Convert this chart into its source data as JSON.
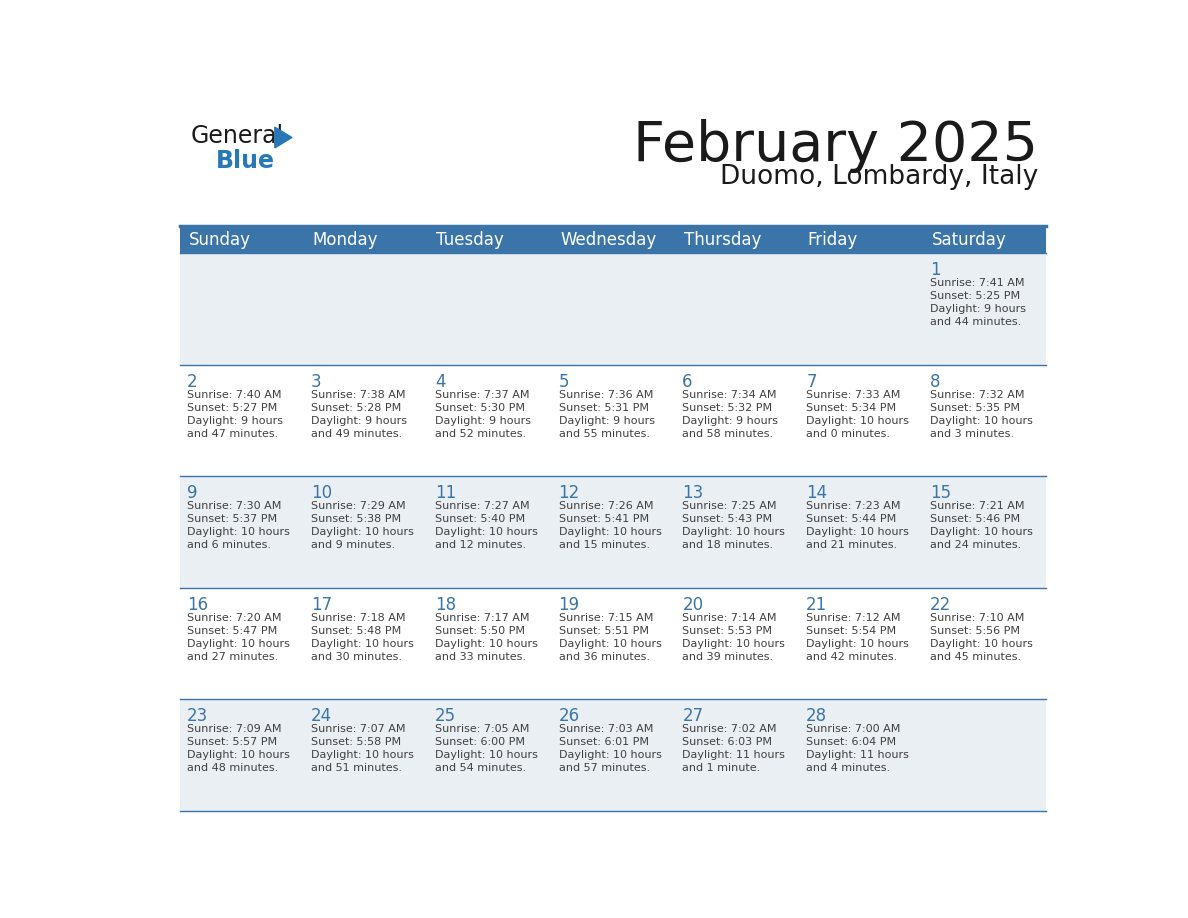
{
  "title": "February 2025",
  "subtitle": "Duomo, Lombardy, Italy",
  "days_of_week": [
    "Sunday",
    "Monday",
    "Tuesday",
    "Wednesday",
    "Thursday",
    "Friday",
    "Saturday"
  ],
  "header_color": "#3A74A8",
  "header_text_color": "#FFFFFF",
  "cell_bg_even": "#EAEFF4",
  "cell_bg_white": "#FFFFFF",
  "day_number_color": "#3A74A8",
  "text_color": "#404040",
  "line_color": "#3A74A8",
  "weeks": [
    [
      {
        "day": null,
        "sunrise": null,
        "sunset": null,
        "daylight": null
      },
      {
        "day": null,
        "sunrise": null,
        "sunset": null,
        "daylight": null
      },
      {
        "day": null,
        "sunrise": null,
        "sunset": null,
        "daylight": null
      },
      {
        "day": null,
        "sunrise": null,
        "sunset": null,
        "daylight": null
      },
      {
        "day": null,
        "sunrise": null,
        "sunset": null,
        "daylight": null
      },
      {
        "day": null,
        "sunrise": null,
        "sunset": null,
        "daylight": null
      },
      {
        "day": 1,
        "sunrise": "7:41 AM",
        "sunset": "5:25 PM",
        "daylight": "9 hours\nand 44 minutes."
      }
    ],
    [
      {
        "day": 2,
        "sunrise": "7:40 AM",
        "sunset": "5:27 PM",
        "daylight": "9 hours\nand 47 minutes."
      },
      {
        "day": 3,
        "sunrise": "7:38 AM",
        "sunset": "5:28 PM",
        "daylight": "9 hours\nand 49 minutes."
      },
      {
        "day": 4,
        "sunrise": "7:37 AM",
        "sunset": "5:30 PM",
        "daylight": "9 hours\nand 52 minutes."
      },
      {
        "day": 5,
        "sunrise": "7:36 AM",
        "sunset": "5:31 PM",
        "daylight": "9 hours\nand 55 minutes."
      },
      {
        "day": 6,
        "sunrise": "7:34 AM",
        "sunset": "5:32 PM",
        "daylight": "9 hours\nand 58 minutes."
      },
      {
        "day": 7,
        "sunrise": "7:33 AM",
        "sunset": "5:34 PM",
        "daylight": "10 hours\nand 0 minutes."
      },
      {
        "day": 8,
        "sunrise": "7:32 AM",
        "sunset": "5:35 PM",
        "daylight": "10 hours\nand 3 minutes."
      }
    ],
    [
      {
        "day": 9,
        "sunrise": "7:30 AM",
        "sunset": "5:37 PM",
        "daylight": "10 hours\nand 6 minutes."
      },
      {
        "day": 10,
        "sunrise": "7:29 AM",
        "sunset": "5:38 PM",
        "daylight": "10 hours\nand 9 minutes."
      },
      {
        "day": 11,
        "sunrise": "7:27 AM",
        "sunset": "5:40 PM",
        "daylight": "10 hours\nand 12 minutes."
      },
      {
        "day": 12,
        "sunrise": "7:26 AM",
        "sunset": "5:41 PM",
        "daylight": "10 hours\nand 15 minutes."
      },
      {
        "day": 13,
        "sunrise": "7:25 AM",
        "sunset": "5:43 PM",
        "daylight": "10 hours\nand 18 minutes."
      },
      {
        "day": 14,
        "sunrise": "7:23 AM",
        "sunset": "5:44 PM",
        "daylight": "10 hours\nand 21 minutes."
      },
      {
        "day": 15,
        "sunrise": "7:21 AM",
        "sunset": "5:46 PM",
        "daylight": "10 hours\nand 24 minutes."
      }
    ],
    [
      {
        "day": 16,
        "sunrise": "7:20 AM",
        "sunset": "5:47 PM",
        "daylight": "10 hours\nand 27 minutes."
      },
      {
        "day": 17,
        "sunrise": "7:18 AM",
        "sunset": "5:48 PM",
        "daylight": "10 hours\nand 30 minutes."
      },
      {
        "day": 18,
        "sunrise": "7:17 AM",
        "sunset": "5:50 PM",
        "daylight": "10 hours\nand 33 minutes."
      },
      {
        "day": 19,
        "sunrise": "7:15 AM",
        "sunset": "5:51 PM",
        "daylight": "10 hours\nand 36 minutes."
      },
      {
        "day": 20,
        "sunrise": "7:14 AM",
        "sunset": "5:53 PM",
        "daylight": "10 hours\nand 39 minutes."
      },
      {
        "day": 21,
        "sunrise": "7:12 AM",
        "sunset": "5:54 PM",
        "daylight": "10 hours\nand 42 minutes."
      },
      {
        "day": 22,
        "sunrise": "7:10 AM",
        "sunset": "5:56 PM",
        "daylight": "10 hours\nand 45 minutes."
      }
    ],
    [
      {
        "day": 23,
        "sunrise": "7:09 AM",
        "sunset": "5:57 PM",
        "daylight": "10 hours\nand 48 minutes."
      },
      {
        "day": 24,
        "sunrise": "7:07 AM",
        "sunset": "5:58 PM",
        "daylight": "10 hours\nand 51 minutes."
      },
      {
        "day": 25,
        "sunrise": "7:05 AM",
        "sunset": "6:00 PM",
        "daylight": "10 hours\nand 54 minutes."
      },
      {
        "day": 26,
        "sunrise": "7:03 AM",
        "sunset": "6:01 PM",
        "daylight": "10 hours\nand 57 minutes."
      },
      {
        "day": 27,
        "sunrise": "7:02 AM",
        "sunset": "6:03 PM",
        "daylight": "11 hours\nand 1 minute."
      },
      {
        "day": 28,
        "sunrise": "7:00 AM",
        "sunset": "6:04 PM",
        "daylight": "11 hours\nand 4 minutes."
      },
      {
        "day": null,
        "sunrise": null,
        "sunset": null,
        "daylight": null
      }
    ]
  ]
}
